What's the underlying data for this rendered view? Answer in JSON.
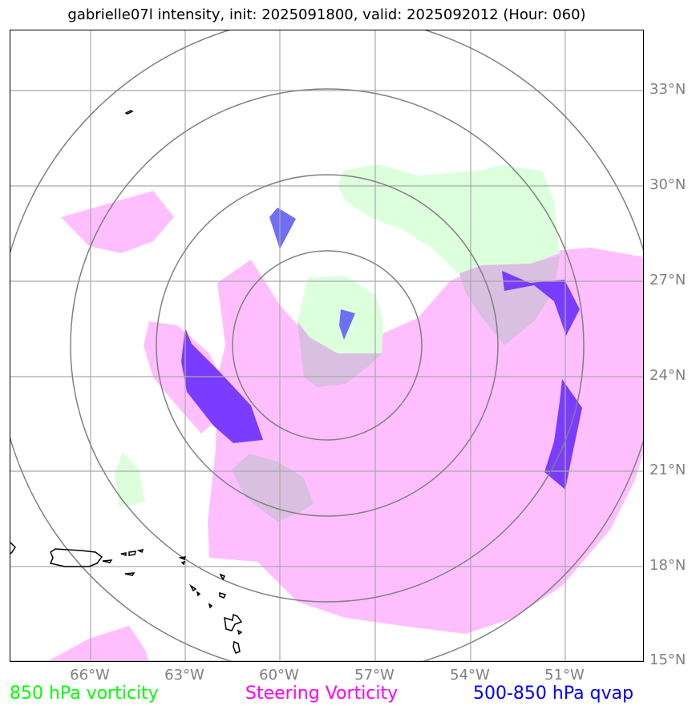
{
  "title": "gabrielle07l intensity, init: 2025091800, valid: 2025092012 (Hour: 060)",
  "lat_labels": [
    "33°N",
    "30°N",
    "27°N",
    "24°N",
    "21°N",
    "18°N",
    "15°N"
  ],
  "lon_labels": [
    "66°W",
    "63°W",
    "60°W",
    "57°W",
    "54°W",
    "51°W"
  ],
  "legend": {
    "vorticity_850": "850 hPa vorticity",
    "steering": "Steering Vorticity",
    "qvap": "500-850 hPa qvap"
  },
  "colors": {
    "vorticity_850": "#00ff00",
    "vorticity_850_fill": "#dcffdc",
    "steering": "#ff00ff",
    "steering_fill": "#ffbfff",
    "qvap": "#0000ff",
    "qvap_fill": "#7a3cff",
    "range_rings": "#808080",
    "gridlines": "#a9a9a9",
    "coastline": "#000000"
  }
}
